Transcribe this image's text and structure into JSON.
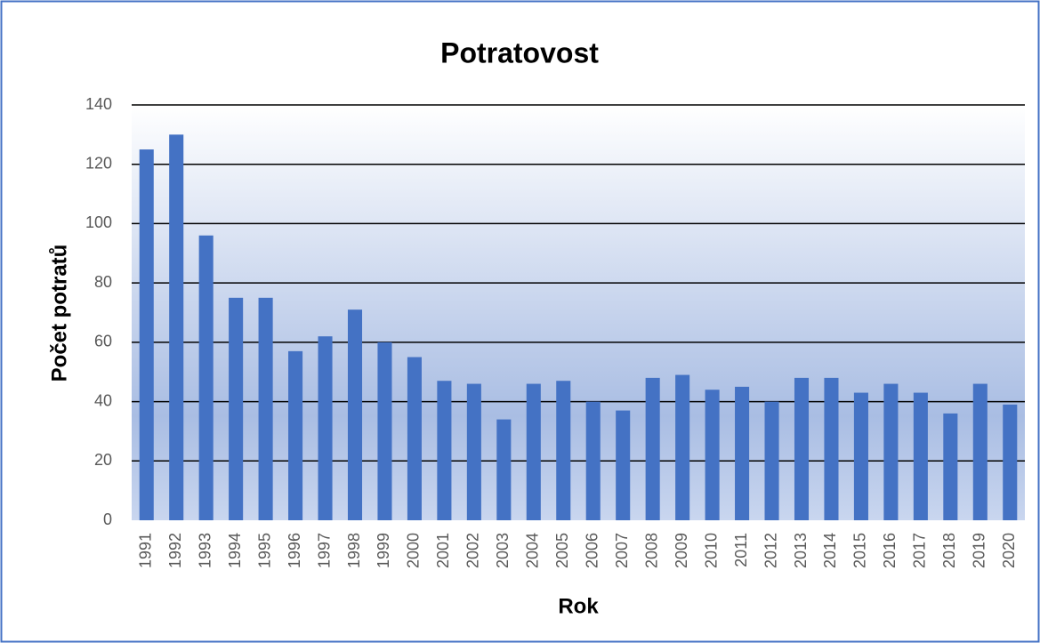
{
  "chart_data": {
    "type": "bar",
    "title": "Potratovost",
    "x_label": "Rok",
    "y_label": "Počet potratů",
    "categories": [
      "1991",
      "1992",
      "1993",
      "1994",
      "1995",
      "1996",
      "1997",
      "1998",
      "1999",
      "2000",
      "2001",
      "2002",
      "2003",
      "2004",
      "2005",
      "2006",
      "2007",
      "2008",
      "2009",
      "2010",
      "2011",
      "2012",
      "2013",
      "2014",
      "2015",
      "2016",
      "2017",
      "2018",
      "2019",
      "2020"
    ],
    "values": [
      125,
      130,
      96,
      75,
      75,
      57,
      62,
      71,
      60,
      55,
      47,
      46,
      34,
      46,
      47,
      40,
      37,
      48,
      49,
      44,
      45,
      40,
      48,
      48,
      43,
      46,
      43,
      36,
      46,
      39
    ],
    "color": "#4472c4",
    "ylim": [
      0,
      140
    ],
    "yticks": [
      0,
      20,
      40,
      60,
      80,
      100,
      120,
      140
    ],
    "grid": true
  }
}
